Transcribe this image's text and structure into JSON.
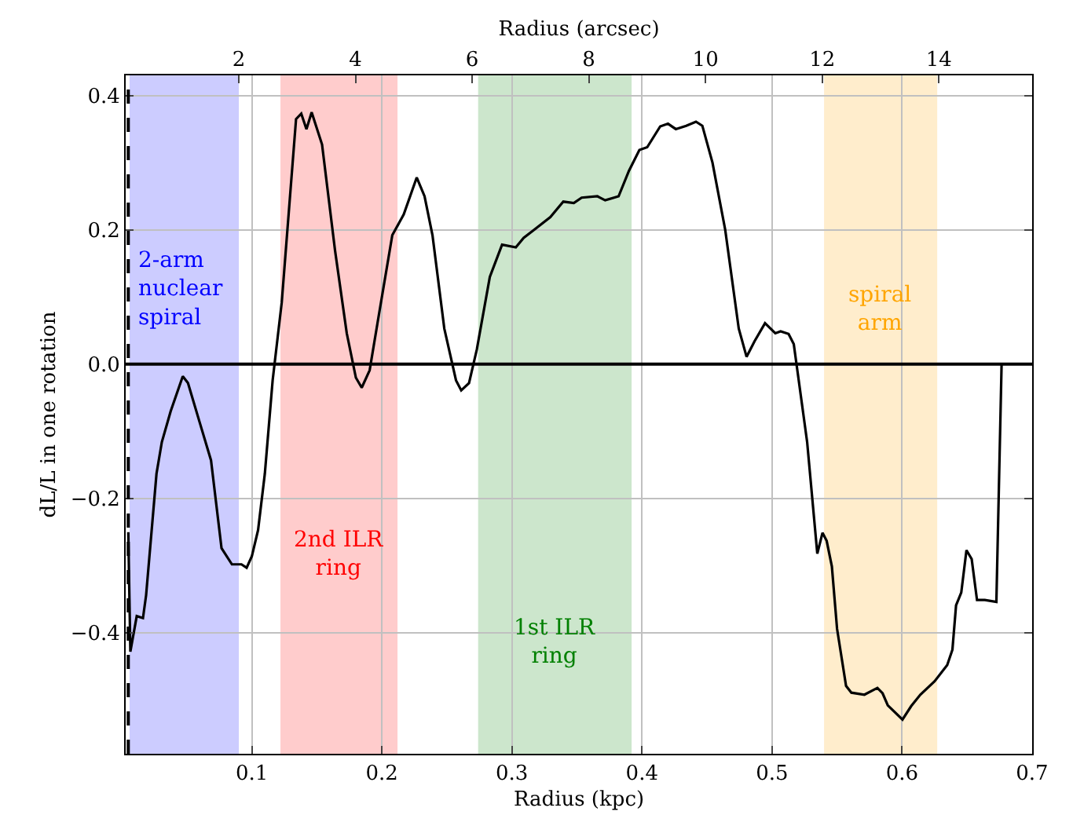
{
  "chart_data": {
    "type": "line",
    "xlabel": "Radius (kpc)",
    "ylabel": "dL/L in one rotation",
    "x2label": "Radius (arcsec)",
    "xlim": [
      0.003,
      0.7
    ],
    "xticks": [
      0.1,
      0.2,
      0.3,
      0.4,
      0.5,
      0.6,
      0.7
    ],
    "x2lim": [
      0.06,
      15.6
    ],
    "x2ticks": [
      2,
      4,
      6,
      8,
      10,
      12,
      14
    ],
    "ylim": [
      -0.58,
      0.43
    ],
    "yticks": [
      {
        "value": -0.4,
        "label": "−0.4"
      },
      {
        "value": -0.2,
        "label": "−0.2"
      },
      {
        "value": 0,
        "label": "0.0"
      },
      0.2,
      0.4
    ],
    "grid": true,
    "line_style": "solid",
    "marker": "none",
    "series": [
      {
        "color": "#000000",
        "x": [
          0.005,
          0.0066,
          0.0115,
          0.0163,
          0.0187,
          0.0267,
          0.0308,
          0.0376,
          0.0469,
          0.0509,
          0.0598,
          0.0686,
          0.0767,
          0.0847,
          0.092,
          0.096,
          0.1,
          0.1048,
          0.11,
          0.116,
          0.123,
          0.134,
          0.138,
          0.142,
          0.146,
          0.154,
          0.164,
          0.173,
          0.18,
          0.1845,
          0.1906,
          0.1966,
          0.208,
          0.2168,
          0.2268,
          0.2328,
          0.2389,
          0.248,
          0.257,
          0.261,
          0.267,
          0.273,
          0.283,
          0.2924,
          0.303,
          0.309,
          0.317,
          0.3295,
          0.3395,
          0.3476,
          0.3536,
          0.3657,
          0.3717,
          0.382,
          0.39,
          0.398,
          0.404,
          0.414,
          0.42,
          0.426,
          0.434,
          0.4415,
          0.4464,
          0.4542,
          0.464,
          0.4744,
          0.4804,
          0.4865,
          0.4946,
          0.5025,
          0.5066,
          0.5127,
          0.5167,
          0.527,
          0.5348,
          0.5388,
          0.542,
          0.546,
          0.55,
          0.5569,
          0.561,
          0.571,
          0.581,
          0.585,
          0.589,
          0.6003,
          0.607,
          0.614,
          0.625,
          0.6347,
          0.6387,
          0.6415,
          0.6455,
          0.6495,
          0.6535,
          0.6576,
          0.6636,
          0.6725,
          0.6765
        ],
        "values": [
          -0.25,
          -0.428,
          -0.375,
          -0.378,
          -0.344,
          -0.163,
          -0.116,
          -0.07,
          -0.018,
          -0.028,
          -0.086,
          -0.143,
          -0.274,
          -0.298,
          -0.298,
          -0.303,
          -0.286,
          -0.247,
          -0.163,
          -0.024,
          0.092,
          0.365,
          0.373,
          0.35,
          0.375,
          0.327,
          0.169,
          0.046,
          -0.02,
          -0.035,
          -0.009,
          0.061,
          0.192,
          0.223,
          0.278,
          0.25,
          0.192,
          0.053,
          -0.024,
          -0.039,
          -0.028,
          0.022,
          0.13,
          0.178,
          0.174,
          0.188,
          0.2,
          0.219,
          0.242,
          0.24,
          0.248,
          0.25,
          0.244,
          0.25,
          0.288,
          0.319,
          0.323,
          0.354,
          0.358,
          0.35,
          0.355,
          0.361,
          0.355,
          0.3,
          0.2,
          0.053,
          0.011,
          0.034,
          0.061,
          0.046,
          0.049,
          0.045,
          0.03,
          -0.116,
          -0.282,
          -0.251,
          -0.263,
          -0.301,
          -0.394,
          -0.479,
          -0.489,
          -0.492,
          -0.482,
          -0.49,
          -0.508,
          -0.529,
          -0.509,
          -0.492,
          -0.472,
          -0.448,
          -0.425,
          -0.359,
          -0.34,
          -0.277,
          -0.29,
          -0.351,
          -0.351,
          -0.354,
          0.0
        ]
      }
    ],
    "bands": [
      {
        "axis": "x",
        "from": 0.006,
        "to": 0.09,
        "color": "#0000ff",
        "label": "2-arm\nnuclear\nspiral"
      },
      {
        "axis": "x",
        "from": 0.122,
        "to": 0.212,
        "color": "#ff0000",
        "label": "2nd ILR\nring"
      },
      {
        "axis": "x",
        "from": 0.274,
        "to": 0.392,
        "color": "#008000",
        "label": "1st ILR\nring"
      },
      {
        "axis": "x",
        "from": 0.54,
        "to": 0.627,
        "color": "#ffa500",
        "label": "spiral\narm"
      }
    ],
    "ref_lines": [
      {
        "axis": "y",
        "value": 0,
        "color": "#000000",
        "line_style": "solid"
      },
      {
        "axis": "x",
        "value": 0.005,
        "color": "#000000",
        "line_style": "dashed"
      }
    ]
  }
}
